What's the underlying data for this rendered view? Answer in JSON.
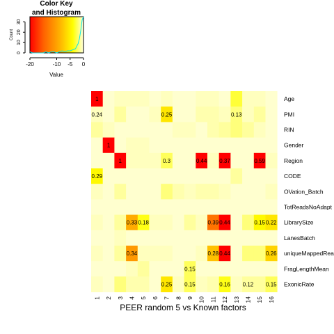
{
  "chart_data": [
    {
      "type": "heatmap",
      "title": "PEER random 5 vs Known factors",
      "columns": [
        "1",
        "2",
        "3",
        "4",
        "5",
        "6",
        "7",
        "8",
        "9",
        "10",
        "11",
        "12",
        "13",
        "14",
        "15",
        "16"
      ],
      "rows": [
        "Age",
        "PMI",
        "RIN",
        "Gender",
        "Region",
        "CODE",
        "OVation_Batch",
        "TotReadsNoAdapt",
        "LibrarySize",
        "LanesBatch",
        "uniqueMappedReads",
        "FragLengthMean",
        "ExonicRate"
      ],
      "color_scale": {
        "min": -20,
        "max": 0,
        "colors": [
          "#ff0000",
          "#ff8000",
          "#ffff00",
          "#ffffe0"
        ]
      },
      "values": [
        [
          -20,
          -0.5,
          -1,
          -1,
          -1,
          -0.5,
          -1,
          -0.5,
          -0.5,
          -1,
          -1,
          -0.5,
          -5,
          -1,
          -1,
          -0.5
        ],
        [
          -1,
          -0.5,
          -2,
          -0.5,
          -0.5,
          -1,
          -8,
          -0.5,
          -0.5,
          -1.5,
          -1.5,
          -1,
          -3,
          -1,
          -2,
          -0.5
        ],
        [
          -2,
          -1,
          -0.5,
          -0.5,
          -0.5,
          -0.5,
          -0.5,
          -1,
          -1,
          -0.5,
          -1.5,
          -2,
          -3,
          -2,
          -1,
          -0.5
        ],
        [
          -0.5,
          -20,
          -0.5,
          -1,
          -1,
          -0.5,
          -0.5,
          -0.5,
          -0.5,
          -0.5,
          -0.5,
          -0.5,
          -0.5,
          -0.5,
          -0.5,
          -0.5
        ],
        [
          -0.5,
          -0.5,
          -20,
          -1,
          -1,
          -1,
          -4,
          -0.5,
          -0.5,
          -20,
          -1,
          -20,
          -0.5,
          -0.5,
          -20,
          -1
        ],
        [
          -7,
          -0.5,
          -0.5,
          -0.5,
          -0.5,
          -0.5,
          -0.5,
          -0.5,
          -0.5,
          -0.5,
          -0.5,
          -0.5,
          -2,
          -0.5,
          -0.5,
          -0.5
        ],
        [
          -1,
          -0.5,
          -2,
          -0.5,
          -0.5,
          -0.5,
          -3,
          -1.5,
          -1,
          -1.5,
          -1.5,
          -1,
          -0.5,
          -0.5,
          -0.5,
          -1
        ],
        [
          -0.5,
          -0.5,
          -0.5,
          -0.5,
          -0.5,
          -0.5,
          -0.5,
          -0.5,
          -0.5,
          -0.5,
          -0.5,
          -0.5,
          -0.5,
          -0.5,
          -0.5,
          -0.5
        ],
        [
          -1,
          -0.5,
          -2,
          -11,
          -6,
          -1,
          -1,
          -0.5,
          -2,
          -1,
          -14,
          -20,
          -0.5,
          -3,
          -7,
          -8
        ],
        [
          -0.5,
          -0.5,
          -1,
          -0.5,
          -0.5,
          -0.5,
          -0.5,
          -0.5,
          -0.5,
          -0.5,
          -0.5,
          -0.5,
          -0.5,
          -0.5,
          -0.5,
          -0.5
        ],
        [
          -1,
          -0.5,
          -2,
          -12,
          -1,
          -1,
          -1,
          -0.5,
          -0.5,
          -1,
          -10,
          -20,
          -0.5,
          -3,
          -3,
          -9
        ],
        [
          -0.5,
          -0.5,
          -0.5,
          -1,
          -2,
          -0.5,
          -0.5,
          -0.5,
          -4,
          -0.5,
          -0.5,
          -0.5,
          -0.5,
          -0.5,
          -0.5,
          -0.5
        ],
        [
          -1,
          -0.5,
          -3,
          -1.5,
          -1.5,
          -0.5,
          -8,
          -1,
          -4,
          -1,
          -1.5,
          -6,
          -1,
          -2,
          -2,
          -4
        ]
      ],
      "cell_labels": [
        [
          "1",
          "",
          "",
          "",
          "",
          "",
          "",
          "",
          "",
          "",
          "",
          "",
          "",
          "",
          "",
          ""
        ],
        [
          "0.24",
          "",
          "",
          "",
          "",
          "",
          "0.25",
          "",
          "",
          "",
          "",
          "",
          "0.13",
          "",
          "",
          ""
        ],
        [
          "",
          "",
          "",
          "",
          "",
          "",
          "",
          "",
          "",
          "",
          "",
          "",
          "",
          "",
          "",
          ""
        ],
        [
          "",
          "1",
          "",
          "",
          "",
          "",
          "",
          "",
          "",
          "",
          "",
          "",
          "",
          "",
          "",
          ""
        ],
        [
          "",
          "",
          "1",
          "",
          "",
          "",
          "0.3",
          "",
          "",
          "0.44",
          "",
          "0.37",
          "",
          "",
          "0.59",
          ""
        ],
        [
          "0.29",
          "",
          "",
          "",
          "",
          "",
          "",
          "",
          "",
          "",
          "",
          "",
          "",
          "",
          "",
          ""
        ],
        [
          "",
          "",
          "",
          "",
          "",
          "",
          "",
          "",
          "",
          "",
          "",
          "",
          "",
          "",
          "",
          ""
        ],
        [
          "",
          "",
          "",
          "",
          "",
          "",
          "",
          "",
          "",
          "",
          "",
          "",
          "",
          "",
          "",
          ""
        ],
        [
          "",
          "",
          "",
          "0.33",
          "0.18",
          "",
          "",
          "",
          "",
          "",
          "0.39",
          "0.44",
          "",
          "",
          "0.15",
          "0.22"
        ],
        [
          "",
          "",
          "",
          "",
          "",
          "",
          "",
          "",
          "",
          "",
          "",
          "",
          "",
          "",
          "",
          ""
        ],
        [
          "",
          "",
          "",
          "0.34",
          "",
          "",
          "",
          "",
          "",
          "",
          "0.28",
          "0.44",
          "",
          "",
          "",
          "0.26"
        ],
        [
          "",
          "",
          "",
          "",
          "",
          "",
          "",
          "",
          "0.15",
          "",
          "",
          "",
          "",
          "",
          "",
          ""
        ],
        [
          "",
          "",
          "",
          "",
          "",
          "",
          "0.25",
          "",
          "0.15",
          "",
          "",
          "0.16",
          "",
          "0.12",
          "",
          "0.15"
        ]
      ]
    },
    {
      "type": "histogram",
      "title": "Color Key\nand Histogram",
      "title_lines": [
        "Color Key",
        "and Histogram"
      ],
      "xlabel": "Value",
      "ylabel": "Count",
      "xlim": [
        -20,
        0
      ],
      "ylim": [
        0,
        35
      ],
      "x_ticks": [
        "-20",
        "-10",
        "-5",
        "0"
      ],
      "x_tick_values": [
        -20,
        -10,
        -5,
        0
      ],
      "y_ticks": [
        "0",
        "10",
        "20",
        "30"
      ],
      "y_tick_values": [
        0,
        10,
        20,
        30
      ],
      "histogram_line": [
        [
          -20,
          1
        ],
        [
          -19,
          0
        ],
        [
          -18,
          0
        ],
        [
          -17,
          0
        ],
        [
          -16,
          0
        ],
        [
          -15,
          0
        ],
        [
          -14,
          1
        ],
        [
          -13,
          0
        ],
        [
          -12,
          1
        ],
        [
          -11,
          1
        ],
        [
          -10,
          0
        ],
        [
          -9,
          1
        ],
        [
          -8,
          2
        ],
        [
          -7,
          1
        ],
        [
          -6,
          2
        ],
        [
          -5,
          2
        ],
        [
          -4,
          3
        ],
        [
          -3,
          4
        ],
        [
          -2,
          9
        ],
        [
          -1.5,
          14
        ],
        [
          -1,
          22
        ],
        [
          -0.5,
          32
        ],
        [
          0,
          37
        ]
      ],
      "line_color": "#00e5ee"
    }
  ]
}
